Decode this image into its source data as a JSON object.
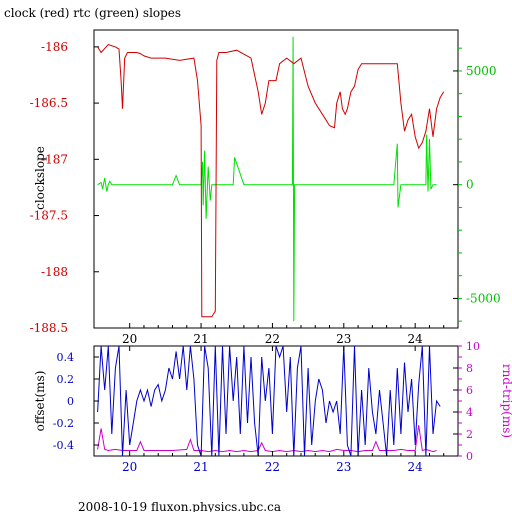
{
  "chart_data": [
    {
      "type": "line",
      "title": "clock (red) rtc (green) slopes",
      "xlabel": "",
      "ylabel": "clockslope",
      "xlim": [
        19.5,
        24.6
      ],
      "ylim": [
        -188.5,
        -185.85
      ],
      "x_ticks": [
        20,
        21,
        22,
        23,
        24
      ],
      "x_tick_labels": [
        "20",
        "21",
        "22",
        "23",
        "24"
      ],
      "y_ticks": [
        -186,
        -186.5,
        -187,
        -187.5,
        -188,
        -188.5
      ],
      "y_tick_labels": [
        "-186",
        "-186.5",
        "-187",
        "-187.5",
        "-188",
        "-188.5"
      ],
      "y2_lim": [
        -6300,
        6800
      ],
      "y2_ticks": [
        5000,
        0,
        -5000
      ],
      "y2_tick_labels": [
        "5000",
        "0",
        "-5000"
      ],
      "grid": false,
      "colors": {
        "clock": "#d00000",
        "rtc": "#00e000",
        "axis": "#000000",
        "left_ticks": "#d00000",
        "right_ticks": "#00c000"
      },
      "series": [
        {
          "axis": "left",
          "x": [
            19.55,
            19.6,
            19.7,
            19.8,
            19.85,
            19.88,
            19.9,
            19.93,
            19.97,
            20.05,
            20.1,
            20.15,
            20.2,
            20.3,
            20.5,
            20.7,
            20.9,
            20.95,
            21.0,
            21.01,
            21.03,
            21.05,
            21.15,
            21.2,
            21.22,
            21.25,
            21.35,
            21.5,
            21.7,
            21.8,
            21.85,
            21.9,
            21.95,
            22.05,
            22.1,
            22.2,
            22.3,
            22.4,
            22.5,
            22.6,
            22.7,
            22.8,
            22.87,
            22.9,
            22.95,
            22.98,
            23.02,
            23.05,
            23.1,
            23.15,
            23.2,
            23.25,
            23.3,
            23.35,
            23.4,
            23.5,
            23.6,
            23.7,
            23.72,
            23.75,
            23.8,
            23.85,
            23.9,
            23.95,
            24.0,
            24.05,
            24.1,
            24.15,
            24.2,
            24.25,
            24.3,
            24.35,
            24.4
          ],
          "y": [
            -186.0,
            -186.05,
            -185.98,
            -186.0,
            -186.02,
            -186.3,
            -186.55,
            -186.1,
            -186.05,
            -186.05,
            -186.05,
            -186.06,
            -186.08,
            -186.1,
            -186.1,
            -186.12,
            -186.1,
            -186.3,
            -186.7,
            -188.4,
            -188.4,
            -188.4,
            -188.4,
            -188.35,
            -186.12,
            -186.05,
            -186.05,
            -186.03,
            -186.1,
            -186.4,
            -186.6,
            -186.5,
            -186.3,
            -186.3,
            -186.15,
            -186.1,
            -186.15,
            -186.1,
            -186.35,
            -186.5,
            -186.6,
            -186.7,
            -186.72,
            -186.5,
            -186.4,
            -186.55,
            -186.6,
            -186.55,
            -186.4,
            -186.35,
            -186.2,
            -186.15,
            -186.15,
            -186.15,
            -186.15,
            -186.15,
            -186.15,
            -186.15,
            -186.15,
            -186.15,
            -186.5,
            -186.75,
            -186.65,
            -186.6,
            -186.8,
            -186.9,
            -186.85,
            -186.75,
            -186.55,
            -186.8,
            -186.55,
            -186.45,
            -186.4
          ]
        },
        {
          "axis": "right",
          "x": [
            19.55,
            19.6,
            19.62,
            19.65,
            19.68,
            19.7,
            19.72,
            19.75,
            19.8,
            20.0,
            20.2,
            20.4,
            20.6,
            20.65,
            20.7,
            20.8,
            20.9,
            21.0,
            21.02,
            21.03,
            21.05,
            21.07,
            21.1,
            21.13,
            21.15,
            21.2,
            21.3,
            21.45,
            21.47,
            21.6,
            21.8,
            21.9,
            22.0,
            22.28,
            22.29,
            22.3,
            22.31,
            22.32,
            22.5,
            22.7,
            23.0,
            23.3,
            23.5,
            23.7,
            23.75,
            23.76,
            23.8,
            24.0,
            24.1,
            24.15,
            24.16,
            24.18,
            24.2,
            24.22,
            24.25,
            24.3
          ],
          "y": [
            0,
            100,
            -200,
            300,
            -300,
            0,
            150,
            0,
            0,
            0,
            0,
            0,
            0,
            400,
            0,
            0,
            0,
            0,
            1000,
            -900,
            1500,
            -1500,
            800,
            -700,
            0,
            0,
            0,
            0,
            1200,
            0,
            0,
            0,
            0,
            0,
            6500,
            -6000,
            0,
            0,
            0,
            0,
            0,
            0,
            0,
            0,
            1800,
            -1000,
            0,
            0,
            0,
            0,
            2200,
            -300,
            2000,
            -200,
            0,
            0
          ]
        }
      ]
    },
    {
      "type": "line",
      "title": "",
      "xlabel": "",
      "ylabel": "offset(ms)",
      "y2label": "rnd-trip(ms)",
      "xlim": [
        19.5,
        24.6
      ],
      "ylim": [
        -0.5,
        0.5
      ],
      "x_ticks": [
        20,
        21,
        22,
        23,
        24
      ],
      "x_tick_labels": [
        "20",
        "21",
        "22",
        "23",
        "24"
      ],
      "y_ticks": [
        0.4,
        0.2,
        0,
        -0.2,
        -0.4
      ],
      "y_tick_labels": [
        "0.4",
        "0.2",
        "0",
        "-0.2",
        "-0.4"
      ],
      "y2_lim": [
        0,
        10
      ],
      "y2_ticks": [
        10,
        8,
        6,
        4,
        2,
        0
      ],
      "y2_tick_labels": [
        "10",
        "8",
        "6",
        "4",
        "2",
        "0"
      ],
      "grid": false,
      "colors": {
        "offset": "#0000cc",
        "rndtrip": "#cc00cc",
        "axis": "#000000",
        "left_ticks": "#0000cc",
        "right_ticks": "#cc00cc"
      },
      "series": [
        {
          "axis": "left",
          "x": [
            19.55,
            19.6,
            19.65,
            19.7,
            19.75,
            19.8,
            19.85,
            19.9,
            19.95,
            20.0,
            20.05,
            20.1,
            20.15,
            20.2,
            20.25,
            20.3,
            20.35,
            20.4,
            20.45,
            20.5,
            20.55,
            20.6,
            20.65,
            20.7,
            20.75,
            20.8,
            20.85,
            20.9,
            20.95,
            21.0,
            21.05,
            21.1,
            21.15,
            21.2,
            21.25,
            21.3,
            21.35,
            21.4,
            21.45,
            21.5,
            21.55,
            21.6,
            21.65,
            21.7,
            21.75,
            21.8,
            21.85,
            21.9,
            21.95,
            22.0,
            22.05,
            22.1,
            22.15,
            22.2,
            22.25,
            22.3,
            22.35,
            22.4,
            22.45,
            22.5,
            22.55,
            22.6,
            22.65,
            22.7,
            22.75,
            22.8,
            22.85,
            22.9,
            22.95,
            23.0,
            23.05,
            23.1,
            23.15,
            23.2,
            23.25,
            23.3,
            23.35,
            23.4,
            23.45,
            23.5,
            23.55,
            23.6,
            23.65,
            23.7,
            23.75,
            23.8,
            23.85,
            23.9,
            23.95,
            24.0,
            24.05,
            24.1,
            24.15,
            24.2,
            24.25,
            24.3,
            24.35
          ],
          "y": [
            -0.1,
            0.5,
            0.1,
            0.5,
            -0.3,
            0.3,
            0.5,
            -0.5,
            0.1,
            -0.4,
            -0.2,
            0.0,
            0.1,
            0.0,
            0.1,
            -0.05,
            0.1,
            0.15,
            0.0,
            0.1,
            0.3,
            0.2,
            0.45,
            0.2,
            0.5,
            0.1,
            0.5,
            0.2,
            -0.4,
            -0.5,
            0.5,
            0.3,
            -0.5,
            0.5,
            -0.5,
            0.5,
            -0.3,
            0.5,
            0.0,
            0.4,
            -0.3,
            0.5,
            -0.2,
            0.4,
            -0.2,
            -0.5,
            0.4,
            0.0,
            0.3,
            -0.3,
            0.5,
            0.4,
            0.5,
            -0.1,
            0.4,
            -0.5,
            0.3,
            0.5,
            -0.5,
            0.3,
            -0.4,
            0.0,
            0.2,
            0.1,
            -0.2,
            0.0,
            -0.1,
            0.0,
            -0.3,
            0.5,
            -0.4,
            -0.5,
            0.5,
            -0.5,
            0.1,
            -0.4,
            0.3,
            -0.1,
            -0.3,
            0.1,
            -0.2,
            -0.5,
            0.1,
            -0.4,
            0.3,
            -0.3,
            0.35,
            -0.1,
            0.2,
            -0.4,
            0.15,
            0.5,
            -0.5,
            0.5,
            -0.3,
            0.0,
            -0.05
          ]
        },
        {
          "axis": "right",
          "x": [
            19.55,
            19.6,
            19.65,
            19.7,
            19.8,
            19.9,
            20.0,
            20.1,
            20.15,
            20.2,
            20.4,
            20.6,
            20.8,
            20.85,
            20.9,
            21.0,
            21.1,
            21.2,
            21.3,
            21.4,
            21.5,
            21.6,
            21.7,
            21.8,
            21.85,
            21.9,
            22.0,
            22.1,
            22.2,
            22.3,
            22.4,
            22.5,
            22.6,
            22.7,
            22.8,
            22.9,
            23.0,
            23.1,
            23.2,
            23.3,
            23.4,
            23.45,
            23.5,
            23.6,
            23.7,
            23.8,
            23.9,
            24.0,
            24.05,
            24.1,
            24.15,
            24.2,
            24.25,
            24.3
          ],
          "y": [
            0.6,
            2.5,
            0.6,
            0.5,
            0.6,
            0.5,
            0.5,
            0.5,
            1.3,
            0.5,
            0.5,
            0.5,
            0.6,
            1.5,
            0.5,
            0.5,
            0.4,
            0.5,
            0.4,
            0.5,
            0.4,
            0.5,
            0.4,
            0.5,
            1.2,
            0.5,
            0.4,
            0.5,
            0.4,
            0.5,
            0.4,
            0.5,
            0.4,
            0.5,
            0.4,
            0.6,
            0.5,
            0.5,
            0.4,
            0.5,
            0.5,
            1.3,
            0.5,
            0.5,
            0.5,
            0.6,
            0.5,
            0.5,
            2.8,
            0.5,
            0.6,
            0.5,
            0.4,
            0.5
          ]
        }
      ]
    }
  ],
  "footer": "2008-10-19 fluxon.physics.ubc.ca"
}
